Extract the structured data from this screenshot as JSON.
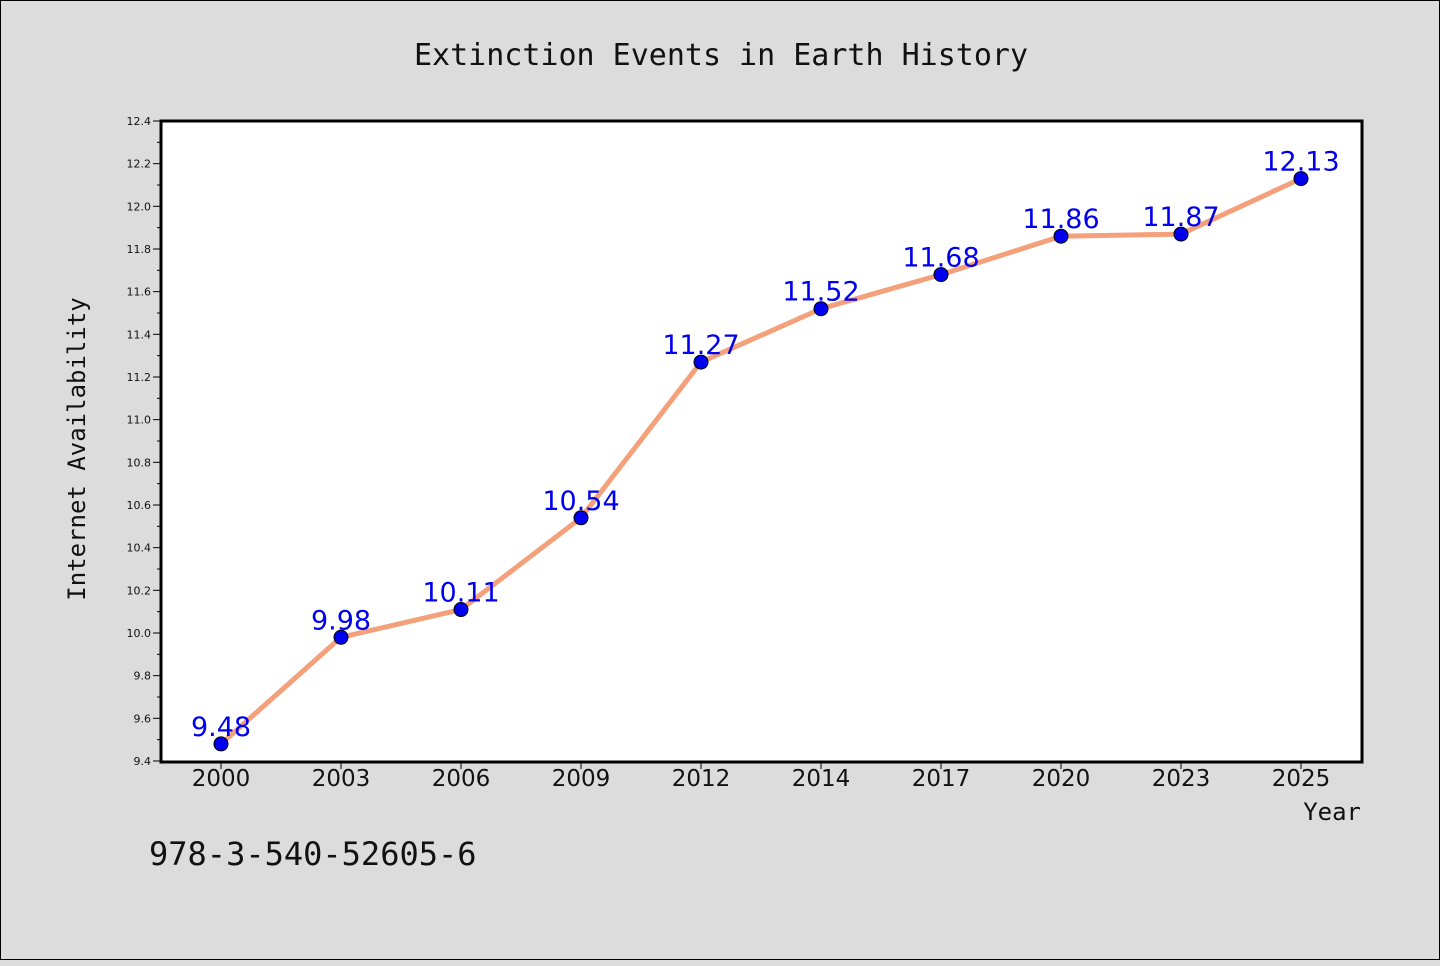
{
  "chart_data": {
    "type": "line",
    "title": "Extinction Events in Earth History",
    "xlabel": "Year",
    "ylabel": "Internet Availability",
    "categories": [
      "2000",
      "2003",
      "2006",
      "2009",
      "2012",
      "2014",
      "2017",
      "2020",
      "2023",
      "2025"
    ],
    "series": [
      {
        "values": [
          9.48,
          9.98,
          10.11,
          10.54,
          11.27,
          11.52,
          11.68,
          11.86,
          11.87,
          12.13
        ],
        "data_labels": [
          "9.48",
          "9.98",
          "10.11",
          "10.54",
          "11.27",
          "11.52",
          "11.68",
          "11.86",
          "11.87",
          "12.13"
        ],
        "line_color": "#f4a07a",
        "marker_color": "#0000ee",
        "label_color": "#0000ee"
      }
    ],
    "ylim": [
      9.4,
      12.4
    ],
    "yticks": [
      "9.4",
      "9.6",
      "9.8",
      "10.0",
      "10.2",
      "10.4",
      "10.6",
      "10.8",
      "11.0",
      "11.2",
      "11.4",
      "11.6",
      "11.8",
      "12.0",
      "12.2",
      "12.4"
    ],
    "grid": false,
    "legend": "none",
    "background_color": "#dcdcdc",
    "plot_background_color": "#ffffff"
  },
  "footer": {
    "isbn": "978-3-540-52605-6"
  }
}
